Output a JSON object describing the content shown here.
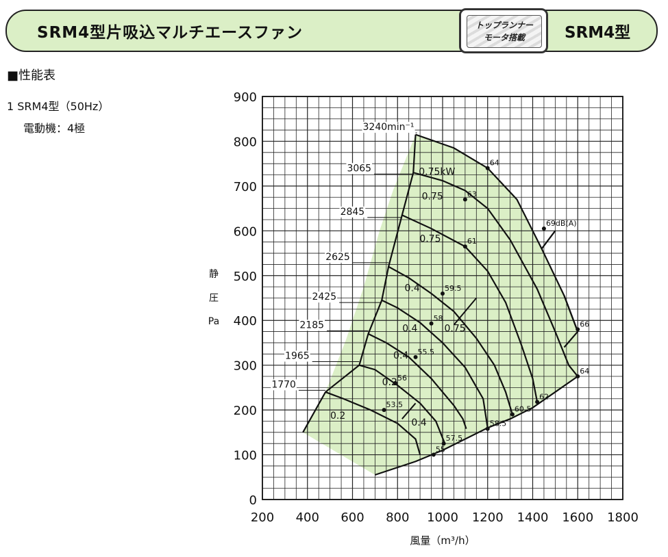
{
  "header": {
    "title": "SRM4型片吸込マルチエースファン",
    "badge_line1": "トップランナー",
    "badge_line2": "モータ搭載",
    "model": "SRM4型"
  },
  "section_title": "■性能表",
  "model_line": "1 SRM4型（50Hz）",
  "motor_line": "電動機：4極",
  "chart_data": {
    "type": "line",
    "title": "",
    "xlabel": "風量（m³/h）",
    "ylabel_chars": [
      "静",
      "圧",
      "Pa"
    ],
    "xlim": [
      200,
      1800
    ],
    "ylim": [
      0,
      900
    ],
    "x_ticks": [
      200,
      400,
      600,
      800,
      1000,
      1200,
      1400,
      1600,
      1800
    ],
    "y_ticks": [
      0,
      100,
      200,
      300,
      400,
      500,
      600,
      700,
      800,
      900
    ],
    "grid": true,
    "fill_color": "#dbefc6",
    "operating_region": [
      [
        380,
        150
      ],
      [
        480,
        240
      ],
      [
        570,
        355
      ],
      [
        650,
        475
      ],
      [
        720,
        600
      ],
      [
        780,
        690
      ],
      [
        880,
        815
      ],
      [
        1050,
        785
      ],
      [
        1200,
        740
      ],
      [
        1330,
        670
      ],
      [
        1440,
        560
      ],
      [
        1540,
        455
      ],
      [
        1600,
        375
      ],
      [
        1600,
        275
      ],
      [
        1500,
        240
      ],
      [
        1400,
        205
      ],
      [
        1300,
        180
      ],
      [
        1200,
        160
      ],
      [
        1000,
        110
      ],
      [
        880,
        85
      ],
      [
        700,
        55
      ]
    ],
    "series": [
      {
        "name": "3240min⁻¹",
        "label_x": 880,
        "label_y": 825,
        "points": [
          [
            880,
            815
          ],
          [
            1050,
            785
          ],
          [
            1200,
            740
          ],
          [
            1330,
            670
          ],
          [
            1440,
            560
          ],
          [
            1540,
            455
          ],
          [
            1600,
            375
          ]
        ]
      },
      {
        "name": "3065",
        "label_x": 690,
        "label_y": 733,
        "points": [
          [
            870,
            730
          ],
          [
            1000,
            712
          ],
          [
            1100,
            690
          ],
          [
            1200,
            650
          ],
          [
            1300,
            580
          ],
          [
            1420,
            470
          ],
          [
            1500,
            375
          ],
          [
            1560,
            300
          ],
          [
            1600,
            275
          ]
        ]
      },
      {
        "name": "2845",
        "label_x": 660,
        "label_y": 636,
        "points": [
          [
            820,
            635
          ],
          [
            950,
            605
          ],
          [
            1100,
            565
          ],
          [
            1200,
            510
          ],
          [
            1280,
            440
          ],
          [
            1350,
            345
          ],
          [
            1400,
            270
          ],
          [
            1420,
            218
          ]
        ]
      },
      {
        "name": "2625",
        "label_x": 595,
        "label_y": 535,
        "points": [
          [
            760,
            520
          ],
          [
            850,
            495
          ],
          [
            950,
            460
          ],
          [
            1050,
            420
          ],
          [
            1150,
            360
          ],
          [
            1230,
            300
          ],
          [
            1280,
            240
          ],
          [
            1310,
            190
          ]
        ]
      },
      {
        "name": "2425",
        "label_x": 535,
        "label_y": 446,
        "points": [
          [
            730,
            445
          ],
          [
            800,
            428
          ],
          [
            900,
            395
          ],
          [
            1000,
            350
          ],
          [
            1100,
            295
          ],
          [
            1180,
            225
          ],
          [
            1200,
            160
          ]
        ]
      },
      {
        "name": "2185",
        "label_x": 480,
        "label_y": 383,
        "points": [
          [
            670,
            370
          ],
          [
            750,
            350
          ],
          [
            850,
            318
          ],
          [
            950,
            270
          ],
          [
            1050,
            210
          ],
          [
            1090,
            180
          ],
          [
            1105,
            158
          ]
        ]
      },
      {
        "name": "1965",
        "label_x": 415,
        "label_y": 314,
        "points": [
          [
            630,
            300
          ],
          [
            700,
            290
          ],
          [
            800,
            255
          ],
          [
            900,
            215
          ],
          [
            970,
            175
          ],
          [
            1010,
            125
          ]
        ]
      },
      {
        "name": "1770",
        "label_x": 355,
        "label_y": 250,
        "points": [
          [
            480,
            240
          ],
          [
            560,
            225
          ],
          [
            680,
            200
          ],
          [
            800,
            170
          ],
          [
            880,
            135
          ],
          [
            900,
            100
          ]
        ]
      }
    ],
    "power_labels": [
      {
        "text": "0.75kW",
        "x": 975,
        "y": 725
      },
      {
        "text": "0.75",
        "x": 955,
        "y": 670
      },
      {
        "text": "0.75",
        "x": 945,
        "y": 575
      },
      {
        "text": "0.4",
        "x": 865,
        "y": 465
      },
      {
        "text": "0.4",
        "x": 855,
        "y": 375
      },
      {
        "text": "0.75",
        "x": 1055,
        "y": 375
      },
      {
        "text": "0.4",
        "x": 815,
        "y": 315
      },
      {
        "text": "0.2",
        "x": 765,
        "y": 255
      },
      {
        "text": "0.2",
        "x": 535,
        "y": 180
      },
      {
        "text": "0.4",
        "x": 895,
        "y": 165
      }
    ],
    "power_boundaries": [
      [
        [
          1440,
          560
        ],
        [
          1500,
          600
        ]
      ],
      [
        [
          1150,
          450
        ],
        [
          1050,
          390
        ]
      ],
      [
        [
          880,
          215
        ],
        [
          820,
          180
        ]
      ]
    ],
    "db_points": [
      {
        "text": "64",
        "x": 1200,
        "y": 740
      },
      {
        "text": "63",
        "x": 1100,
        "y": 670
      },
      {
        "text": "69dB(A)",
        "x": 1450,
        "y": 605
      },
      {
        "text": "61",
        "x": 1100,
        "y": 565
      },
      {
        "text": "59.5",
        "x": 1000,
        "y": 460
      },
      {
        "text": "58",
        "x": 950,
        "y": 393
      },
      {
        "text": "66",
        "x": 1600,
        "y": 380
      },
      {
        "text": "55.5",
        "x": 880,
        "y": 318
      },
      {
        "text": "56",
        "x": 790,
        "y": 260
      },
      {
        "text": "64",
        "x": 1600,
        "y": 275
      },
      {
        "text": "53.5",
        "x": 740,
        "y": 200
      },
      {
        "text": "62",
        "x": 1420,
        "y": 218
      },
      {
        "text": "60.5",
        "x": 1310,
        "y": 190
      },
      {
        "text": "58.5",
        "x": 1200,
        "y": 158
      },
      {
        "text": "57.5",
        "x": 1005,
        "y": 125
      },
      {
        "text": "55",
        "x": 960,
        "y": 100
      }
    ]
  }
}
